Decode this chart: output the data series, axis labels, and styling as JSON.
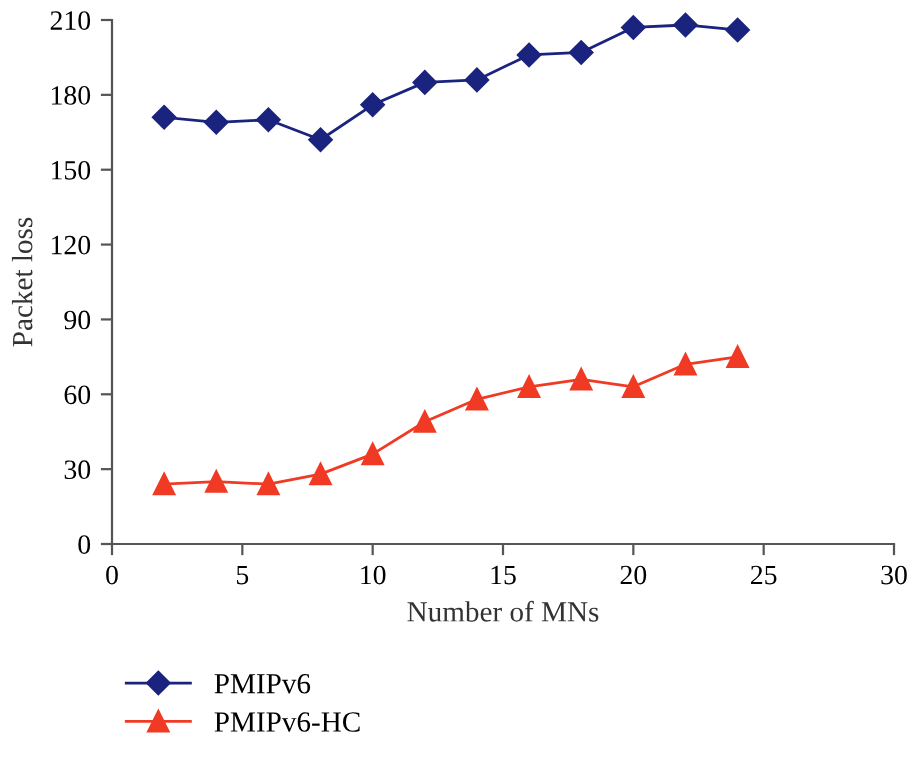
{
  "chart_data": {
    "type": "line",
    "xlabel": "Number of MNs",
    "ylabel": "Packet loss",
    "xlim": [
      0,
      30
    ],
    "xticks": [
      0,
      5,
      10,
      15,
      20,
      25,
      30
    ],
    "ylim": [
      0,
      210
    ],
    "yticks": [
      0,
      30,
      60,
      90,
      120,
      150,
      180,
      210
    ],
    "grid": false,
    "legend": "bottom",
    "line_style": "solid",
    "series": [
      {
        "name": "PMIPv6",
        "color": "#1a237e",
        "marker": "diamond",
        "x": [
          2,
          4,
          6,
          8,
          10,
          12,
          14,
          16,
          18,
          20,
          22,
          24
        ],
        "values": [
          171,
          169,
          170,
          162,
          176,
          185,
          186,
          196,
          197,
          207,
          208,
          206
        ]
      },
      {
        "name": "PMIPv6-HC",
        "color": "#f03a24",
        "marker": "triangle",
        "x": [
          2,
          4,
          6,
          8,
          10,
          12,
          14,
          16,
          18,
          20,
          22,
          24
        ],
        "values": [
          24,
          25,
          24,
          28,
          36,
          49,
          58,
          63,
          66,
          63,
          72,
          75
        ]
      }
    ]
  }
}
